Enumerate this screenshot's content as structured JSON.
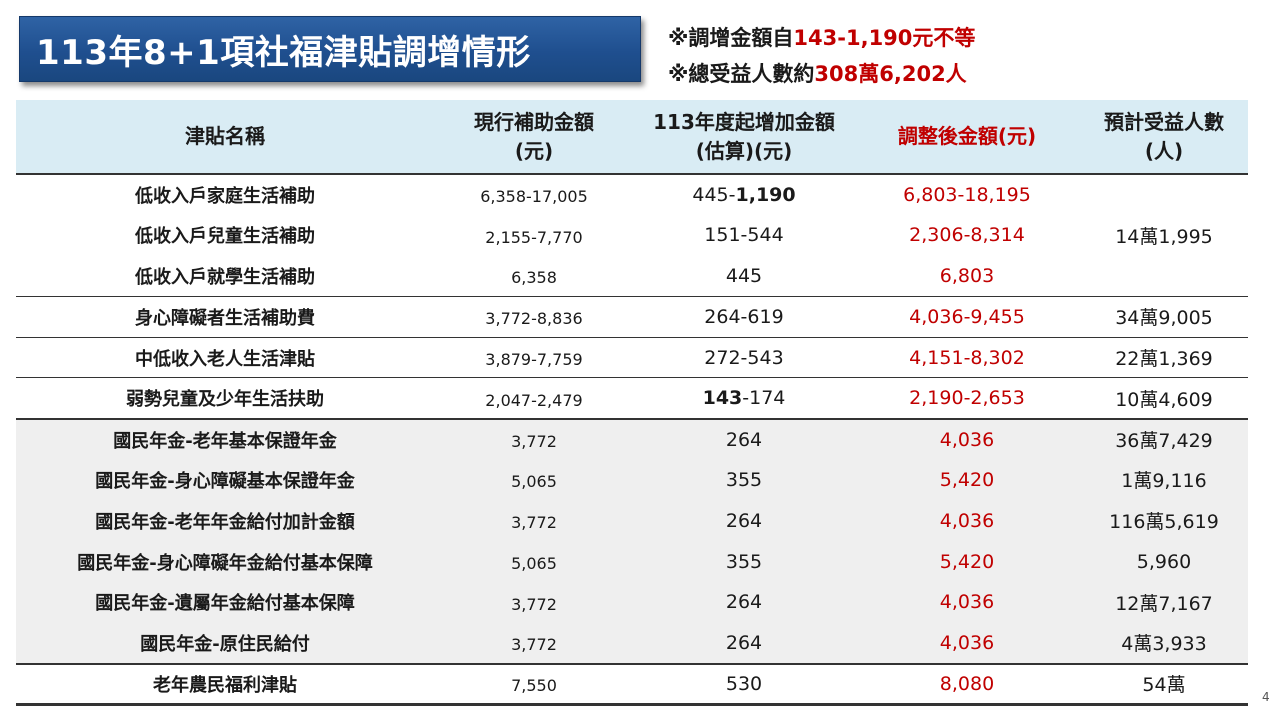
{
  "title": "113年8+1項社福津貼調增情形",
  "notes": [
    {
      "prefix": "※調增金額自",
      "highlight": "143-1,190元不等"
    },
    {
      "prefix": "※總受益人數約",
      "highlight": "308萬6,202人"
    }
  ],
  "table": {
    "headers": {
      "name": "津貼名稱",
      "current_line1": "現行補助金額",
      "current_line2": "(元)",
      "increase_line1": "113年度起增加金額",
      "increase_line2": "(估算)(元)",
      "adjusted": "調整後金額(元)",
      "beneficiaries_line1": "預計受益人數",
      "beneficiaries_line2": "(人)"
    },
    "group_beneficiaries": "14萬1,995",
    "rows": [
      {
        "name": "低收入戶家庭生活補助",
        "current": "6,358-17,005",
        "increase_a": "445-",
        "increase_b": "1,190",
        "adjusted": "6,803-18,195",
        "beneficiaries": ""
      },
      {
        "name": "低收入戶兒童生活補助",
        "current": "2,155-7,770",
        "increase_a": "151-544",
        "increase_b": "",
        "adjusted": "2,306-8,314",
        "beneficiaries": ""
      },
      {
        "name": "低收入戶就學生活補助",
        "current": "6,358",
        "increase_a": "445",
        "increase_b": "",
        "adjusted": "6,803",
        "beneficiaries": ""
      },
      {
        "name": "身心障礙者生活補助費",
        "current": "3,772-8,836",
        "increase_a": "264-619",
        "increase_b": "",
        "adjusted": "4,036-9,455",
        "beneficiaries": "34萬9,005"
      },
      {
        "name": "中低收入老人生活津貼",
        "current": "3,879-7,759",
        "increase_a": "272-543",
        "increase_b": "",
        "adjusted": "4,151-8,302",
        "beneficiaries": "22萬1,369"
      },
      {
        "name": "弱勢兒童及少年生活扶助",
        "current": "2,047-2,479",
        "increase_a": "143",
        "increase_b": "-174",
        "adjusted": "2,190-2,653",
        "beneficiaries": "10萬4,609"
      },
      {
        "name": "國民年金-老年基本保證年金",
        "current": "3,772",
        "increase_a": "264",
        "increase_b": "",
        "adjusted": "4,036",
        "beneficiaries": "36萬7,429"
      },
      {
        "name": "國民年金-身心障礙基本保證年金",
        "current": "5,065",
        "increase_a": "355",
        "increase_b": "",
        "adjusted": "5,420",
        "beneficiaries": "1萬9,116"
      },
      {
        "name": "國民年金-老年年金給付加計金額",
        "current": "3,772",
        "increase_a": "264",
        "increase_b": "",
        "adjusted": "4,036",
        "beneficiaries": "116萬5,619"
      },
      {
        "name": "國民年金-身心障礙年金給付基本保障",
        "current": "5,065",
        "increase_a": "355",
        "increase_b": "",
        "adjusted": "5,420",
        "beneficiaries": "5,960"
      },
      {
        "name": "國民年金-遺屬年金給付基本保障",
        "current": "3,772",
        "increase_a": "264",
        "increase_b": "",
        "adjusted": "4,036",
        "beneficiaries": "12萬7,167"
      },
      {
        "name": "國民年金-原住民給付",
        "current": "3,772",
        "increase_a": "264",
        "increase_b": "",
        "adjusted": "4,036",
        "beneficiaries": "4萬3,933"
      },
      {
        "name": "老年農民福利津貼",
        "current": "7,550",
        "increase_a": "530",
        "increase_b": "",
        "adjusted": "8,080",
        "beneficiaries": "54萬"
      }
    ]
  },
  "page_number": "4",
  "colors": {
    "banner": "#1f4f8f",
    "header_bg": "#d9ecf4",
    "highlight_red": "#c00000",
    "grey_row": "#efefef"
  }
}
